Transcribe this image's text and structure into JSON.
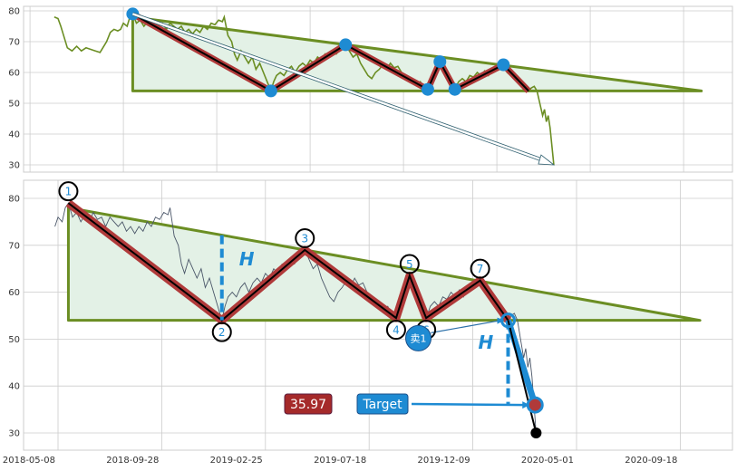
{
  "colors": {
    "trend": "#6b8e23",
    "fill": "#e3f1e6",
    "pattern": "#b03a3a",
    "accent": "#1e8bd3",
    "price": "#4a5668",
    "grid": "#cccccc"
  },
  "chart_data": [
    {
      "type": "line",
      "panel": "top",
      "ylim": [
        28,
        81
      ],
      "yticks": [
        30,
        40,
        50,
        60,
        70,
        80
      ],
      "x_unit": "bar index",
      "xlim": [
        -104,
        654
      ],
      "xgrid": [
        -100,
        0,
        100,
        200,
        300,
        400,
        500,
        600
      ],
      "grid": true
    },
    {
      "type": "line",
      "panel": "bottom",
      "ylim": [
        26,
        84
      ],
      "yticks": [
        30,
        40,
        50,
        60,
        70,
        80
      ],
      "x_unit": "bar index",
      "xlim": [
        -33,
        650
      ],
      "xticks": [
        {
          "bar": 0,
          "label": "2018-05-08"
        },
        {
          "bar": 100,
          "label": "2018-09-28"
        },
        {
          "bar": 200,
          "label": "2019-02-25"
        },
        {
          "bar": 300,
          "label": "2019-07-18"
        },
        {
          "bar": 400,
          "label": "2019-12-09"
        },
        {
          "bar": 500,
          "label": "2020-05-01"
        },
        {
          "bar": 600,
          "label": "2020-09-18"
        }
      ],
      "grid": true
    }
  ],
  "series": [
    [
      -74,
      78
    ],
    [
      -70,
      77.5
    ],
    [
      -67,
      75
    ],
    [
      -64,
      72
    ],
    [
      -60,
      68
    ],
    [
      -55,
      67
    ],
    [
      -50,
      68.5
    ],
    [
      -45,
      67
    ],
    [
      -40,
      68
    ],
    [
      -35,
      67.5
    ],
    [
      -30,
      67
    ],
    [
      -25,
      66.5
    ],
    [
      -22,
      68
    ],
    [
      -18,
      70
    ],
    [
      -14,
      73
    ],
    [
      -10,
      74
    ],
    [
      -6,
      73.5
    ],
    [
      -3,
      74
    ],
    [
      0,
      76
    ],
    [
      4,
      75
    ],
    [
      7,
      78
    ],
    [
      10,
      79
    ],
    [
      14,
      76
    ],
    [
      18,
      77
    ],
    [
      22,
      75
    ],
    [
      26,
      76.5
    ],
    [
      30,
      75
    ],
    [
      34,
      77
    ],
    [
      38,
      75.5
    ],
    [
      42,
      76
    ],
    [
      46,
      74
    ],
    [
      50,
      76
    ],
    [
      54,
      75
    ],
    [
      58,
      74
    ],
    [
      62,
      75
    ],
    [
      66,
      73
    ],
    [
      70,
      74
    ],
    [
      74,
      72.5
    ],
    [
      78,
      74
    ],
    [
      82,
      73
    ],
    [
      86,
      75
    ],
    [
      90,
      74
    ],
    [
      94,
      76
    ],
    [
      98,
      75.5
    ],
    [
      102,
      77
    ],
    [
      106,
      76.5
    ],
    [
      108,
      78
    ],
    [
      112,
      72
    ],
    [
      116,
      70
    ],
    [
      119,
      66
    ],
    [
      122,
      64
    ],
    [
      126,
      67
    ],
    [
      130,
      65
    ],
    [
      134,
      63
    ],
    [
      138,
      65
    ],
    [
      142,
      61
    ],
    [
      146,
      63
    ],
    [
      150,
      60
    ],
    [
      154,
      57
    ],
    [
      158,
      54
    ],
    [
      161,
      57
    ],
    [
      164,
      59
    ],
    [
      168,
      60
    ],
    [
      172,
      59
    ],
    [
      176,
      61
    ],
    [
      180,
      62
    ],
    [
      184,
      60
    ],
    [
      188,
      62
    ],
    [
      192,
      63
    ],
    [
      196,
      62
    ],
    [
      200,
      64
    ],
    [
      204,
      63
    ],
    [
      208,
      65
    ],
    [
      212,
      64
    ],
    [
      216,
      66
    ],
    [
      220,
      65
    ],
    [
      224,
      66.5
    ],
    [
      228,
      66
    ],
    [
      232,
      67.5
    ],
    [
      238,
      69
    ],
    [
      242,
      67
    ],
    [
      246,
      65
    ],
    [
      250,
      66
    ],
    [
      254,
      63
    ],
    [
      258,
      61
    ],
    [
      262,
      59
    ],
    [
      266,
      58
    ],
    [
      270,
      60
    ],
    [
      274,
      61
    ],
    [
      278,
      62.5
    ],
    [
      282,
      61
    ],
    [
      286,
      63
    ],
    [
      290,
      61.5
    ],
    [
      294,
      62
    ],
    [
      298,
      60
    ],
    [
      302,
      59
    ],
    [
      306,
      58
    ],
    [
      310,
      57
    ],
    [
      314,
      56
    ],
    [
      318,
      57
    ],
    [
      322,
      55
    ],
    [
      326,
      54.5
    ],
    [
      330,
      57
    ],
    [
      334,
      60
    ],
    [
      339,
      63.5
    ],
    [
      343,
      61
    ],
    [
      347,
      58
    ],
    [
      351,
      56
    ],
    [
      355,
      54.5
    ],
    [
      359,
      57
    ],
    [
      363,
      58
    ],
    [
      367,
      57
    ],
    [
      371,
      59
    ],
    [
      375,
      58.5
    ],
    [
      379,
      60
    ],
    [
      383,
      59
    ],
    [
      387,
      60.5
    ],
    [
      391,
      59
    ],
    [
      395,
      61
    ],
    [
      399,
      60.5
    ],
    [
      403,
      61.5
    ],
    [
      407,
      62.5
    ],
    [
      411,
      60
    ],
    [
      415,
      59
    ],
    [
      419,
      58
    ],
    [
      423,
      57
    ],
    [
      427,
      56
    ],
    [
      431,
      55
    ],
    [
      434,
      54
    ],
    [
      437,
      55
    ],
    [
      440,
      55.5
    ],
    [
      443,
      54
    ],
    [
      446,
      50
    ],
    [
      449,
      46
    ],
    [
      451,
      48
    ],
    [
      453,
      44
    ],
    [
      455,
      46
    ],
    [
      457,
      42
    ],
    [
      459,
      36
    ],
    [
      461,
      30
    ]
  ],
  "pattern": {
    "pivots": [
      {
        "label": "1",
        "bar": 10,
        "value": 79,
        "pos": "above"
      },
      {
        "label": "2",
        "bar": 158,
        "value": 54,
        "pos": "below"
      },
      {
        "label": "3",
        "bar": 238,
        "value": 69,
        "pos": "above"
      },
      {
        "label": "4",
        "bar": 326,
        "value": 54.5,
        "pos": "below"
      },
      {
        "label": "5",
        "bar": 339,
        "value": 63.5,
        "pos": "above"
      },
      {
        "label": "6",
        "bar": 355,
        "value": 54.5,
        "pos": "below"
      },
      {
        "label": "7",
        "bar": 407,
        "value": 62.5,
        "pos": "above"
      }
    ],
    "breakout": {
      "bar": 434,
      "value": 54
    },
    "target": {
      "bar": 460,
      "value": 35.97
    },
    "end": {
      "bar": 461,
      "value": 30
    },
    "triangle": {
      "start_bar": 10,
      "apex_bar": 619,
      "top": 78,
      "base": 54
    },
    "height_label": "H",
    "sell_label": "卖1",
    "sell_point": {
      "bar": 330,
      "value": 50
    },
    "target_value_label": "35.97",
    "target_label": "Target"
  }
}
